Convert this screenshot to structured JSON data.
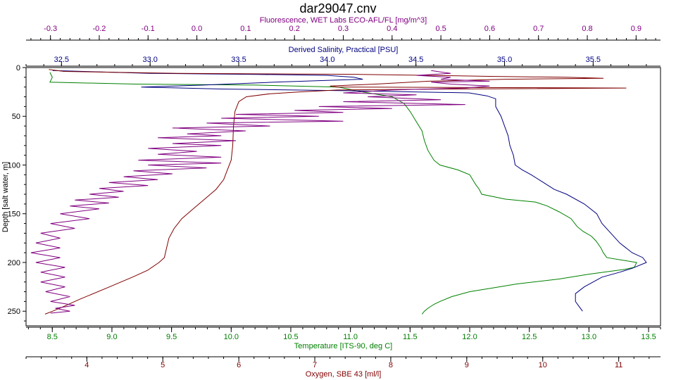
{
  "chart_data": {
    "type": "line",
    "title": "dar29047.cnv",
    "plot": {
      "depth_range": [
        0,
        265
      ]
    },
    "axes": [
      {
        "key": "fluorescence",
        "position": "top-outer",
        "label": "Fluorescence, WET Labs ECO-AFL/FL [mg/m^3]",
        "color": "#800080",
        "range": [
          -0.35,
          0.95
        ],
        "major_step": 0.1,
        "minor_step": 0.02,
        "tick_labels": [
          "-0.3",
          "-0.2",
          "-0.1",
          "0.0",
          "0.1",
          "0.2",
          "0.3",
          "0.4",
          "0.5",
          "0.6",
          "0.7",
          "0.8",
          "0.9"
        ]
      },
      {
        "key": "salinity",
        "position": "top-inner",
        "label": "Derived Salinity, Practical [PSU]",
        "color": "#000080",
        "range": [
          32.3,
          35.88
        ],
        "major_step": 0.5,
        "minor_step": 0.1,
        "tick_labels": [
          "32.5",
          "33.0",
          "33.5",
          "34.0",
          "34.5",
          "35.0",
          "35.5"
        ]
      },
      {
        "key": "temperature",
        "position": "bottom-inner",
        "label": "Temperature [ITS-90, deg C]",
        "color": "#008000",
        "range": [
          8.28,
          13.6
        ],
        "major_step": 0.5,
        "minor_step": 0.1,
        "tick_labels": [
          "8.5",
          "9.0",
          "9.5",
          "10.0",
          "10.5",
          "11.0",
          "11.5",
          "12.0",
          "12.5",
          "13.0",
          "13.5"
        ]
      },
      {
        "key": "oxygen",
        "position": "bottom-outer",
        "label": "Oxygen, SBE 43 [ml/l]",
        "color": "#800000",
        "range": [
          3.2,
          11.55
        ],
        "major_step": 1,
        "minor_step": 0.2,
        "tick_labels": [
          "4",
          "5",
          "6",
          "7",
          "8",
          "9",
          "10",
          "11"
        ]
      }
    ],
    "y_axis": {
      "label": "Depth [salt water, m]",
      "range": [
        0,
        265
      ],
      "ticks": [
        0,
        50,
        100,
        150,
        200,
        250
      ],
      "tick_labels": [
        "0",
        "50",
        "100",
        "150",
        "200",
        "250"
      ],
      "inverted": true
    },
    "series": [
      {
        "axis": "temperature",
        "color": "#008000",
        "points": [
          [
            8.48,
            5
          ],
          [
            8.5,
            10
          ],
          [
            8.48,
            15
          ],
          [
            9.2,
            17
          ],
          [
            10.2,
            18
          ],
          [
            10.9,
            20
          ],
          [
            11.1,
            25
          ],
          [
            11.35,
            30
          ],
          [
            11.45,
            37
          ],
          [
            11.5,
            45
          ],
          [
            11.55,
            55
          ],
          [
            11.6,
            65
          ],
          [
            11.62,
            75
          ],
          [
            11.65,
            85
          ],
          [
            11.7,
            95
          ],
          [
            11.75,
            100
          ],
          [
            11.9,
            105
          ],
          [
            12.0,
            110
          ],
          [
            12.05,
            120
          ],
          [
            12.08,
            125
          ],
          [
            12.1,
            130
          ],
          [
            12.3,
            135
          ],
          [
            12.55,
            138
          ],
          [
            12.65,
            142
          ],
          [
            12.75,
            148
          ],
          [
            12.85,
            155
          ],
          [
            12.9,
            163
          ],
          [
            12.95,
            168
          ],
          [
            13.02,
            173
          ],
          [
            13.06,
            178
          ],
          [
            13.1,
            185
          ],
          [
            13.12,
            190
          ],
          [
            13.15,
            195
          ],
          [
            13.3,
            198
          ],
          [
            13.4,
            200
          ],
          [
            13.38,
            205
          ],
          [
            13.3,
            207
          ],
          [
            13.0,
            212
          ],
          [
            12.75,
            217
          ],
          [
            12.4,
            222
          ],
          [
            12.2,
            226
          ],
          [
            12.0,
            230
          ],
          [
            11.85,
            235
          ],
          [
            11.75,
            240
          ],
          [
            11.7,
            243
          ],
          [
            11.65,
            247
          ],
          [
            11.62,
            250
          ],
          [
            11.6,
            253
          ]
        ]
      },
      {
        "axis": "salinity",
        "color": "#000080",
        "points": [
          [
            32.45,
            3
          ],
          [
            33.0,
            6
          ],
          [
            33.6,
            7
          ],
          [
            34.0,
            8
          ],
          [
            34.15,
            10
          ],
          [
            34.2,
            12
          ],
          [
            33.7,
            15
          ],
          [
            33.3,
            18
          ],
          [
            32.95,
            20
          ],
          [
            33.4,
            22
          ],
          [
            34.2,
            24
          ],
          [
            34.8,
            26
          ],
          [
            34.9,
            29
          ],
          [
            34.95,
            32
          ],
          [
            34.95,
            40
          ],
          [
            34.98,
            50
          ],
          [
            35.0,
            60
          ],
          [
            35.02,
            70
          ],
          [
            35.03,
            80
          ],
          [
            35.05,
            90
          ],
          [
            35.06,
            100
          ],
          [
            35.1,
            105
          ],
          [
            35.15,
            110
          ],
          [
            35.22,
            118
          ],
          [
            35.28,
            125
          ],
          [
            35.35,
            130
          ],
          [
            35.45,
            140
          ],
          [
            35.52,
            150
          ],
          [
            35.55,
            160
          ],
          [
            35.6,
            170
          ],
          [
            35.65,
            180
          ],
          [
            35.72,
            190
          ],
          [
            35.78,
            195
          ],
          [
            35.8,
            200
          ],
          [
            35.72,
            206
          ],
          [
            35.65,
            210
          ],
          [
            35.55,
            215
          ],
          [
            35.5,
            220
          ],
          [
            35.45,
            225
          ],
          [
            35.4,
            232
          ],
          [
            35.4,
            240
          ],
          [
            35.42,
            245
          ],
          [
            35.44,
            250
          ]
        ]
      },
      {
        "axis": "oxygen",
        "color": "#800000",
        "points": [
          [
            3.5,
            2
          ],
          [
            3.7,
            4
          ],
          [
            5.2,
            6
          ],
          [
            7.6,
            7
          ],
          [
            8.5,
            8
          ],
          [
            9.3,
            9
          ],
          [
            10.3,
            10
          ],
          [
            10.8,
            11
          ],
          [
            9.5,
            12
          ],
          [
            8.5,
            14
          ],
          [
            7.8,
            17
          ],
          [
            7.2,
            19
          ],
          [
            7.3,
            20
          ],
          [
            11.1,
            21
          ],
          [
            8.8,
            22
          ],
          [
            7.3,
            23
          ],
          [
            6.8,
            25
          ],
          [
            6.4,
            27
          ],
          [
            6.1,
            30
          ],
          [
            6.0,
            35
          ],
          [
            5.95,
            45
          ],
          [
            5.93,
            60
          ],
          [
            5.92,
            80
          ],
          [
            5.9,
            95
          ],
          [
            5.85,
            105
          ],
          [
            5.8,
            115
          ],
          [
            5.7,
            125
          ],
          [
            5.55,
            135
          ],
          [
            5.4,
            145
          ],
          [
            5.25,
            155
          ],
          [
            5.15,
            165
          ],
          [
            5.08,
            175
          ],
          [
            5.05,
            185
          ],
          [
            5.02,
            195
          ],
          [
            4.95,
            200
          ],
          [
            4.8,
            208
          ],
          [
            4.6,
            215
          ],
          [
            4.3,
            225
          ],
          [
            3.9,
            238
          ],
          [
            3.7,
            245
          ],
          [
            3.55,
            250
          ],
          [
            3.45,
            253
          ]
        ]
      },
      {
        "axis": "fluorescence",
        "color": "#800080",
        "points": [
          [
            0.48,
            3
          ],
          [
            0.52,
            6
          ],
          [
            0.45,
            8
          ],
          [
            0.52,
            10
          ],
          [
            0.5,
            12
          ],
          [
            0.6,
            14
          ],
          [
            0.48,
            15
          ],
          [
            0.52,
            17
          ],
          [
            0.6,
            19
          ],
          [
            0.55,
            21
          ],
          [
            0.4,
            23
          ],
          [
            0.3,
            26
          ],
          [
            0.45,
            28
          ],
          [
            0.35,
            30
          ],
          [
            0.5,
            33
          ],
          [
            0.3,
            35
          ],
          [
            0.55,
            38
          ],
          [
            0.25,
            40
          ],
          [
            0.4,
            42
          ],
          [
            0.2,
            44
          ],
          [
            0.3,
            46
          ],
          [
            0.08,
            48
          ],
          [
            0.25,
            50
          ],
          [
            0.05,
            52
          ],
          [
            0.3,
            55
          ],
          [
            0.02,
            57
          ],
          [
            0.15,
            60
          ],
          [
            -0.05,
            62
          ],
          [
            0.1,
            65
          ],
          [
            -0.02,
            68
          ],
          [
            0.05,
            70
          ],
          [
            -0.08,
            72
          ],
          [
            0.08,
            75
          ],
          [
            -0.05,
            78
          ],
          [
            0.05,
            80
          ],
          [
            -0.1,
            83
          ],
          [
            0.0,
            86
          ],
          [
            -0.08,
            89
          ],
          [
            0.05,
            92
          ],
          [
            -0.12,
            95
          ],
          [
            0.05,
            98
          ],
          [
            -0.1,
            100
          ],
          [
            0.02,
            103
          ],
          [
            -0.13,
            106
          ],
          [
            -0.05,
            109
          ],
          [
            -0.15,
            112
          ],
          [
            -0.08,
            115
          ],
          [
            -0.18,
            118
          ],
          [
            -0.1,
            121
          ],
          [
            -0.2,
            124
          ],
          [
            -0.15,
            127
          ],
          [
            -0.22,
            130
          ],
          [
            -0.16,
            133
          ],
          [
            -0.25,
            136
          ],
          [
            -0.18,
            139
          ],
          [
            -0.26,
            142
          ],
          [
            -0.2,
            145
          ],
          [
            -0.28,
            150
          ],
          [
            -0.22,
            155
          ],
          [
            -0.3,
            160
          ],
          [
            -0.25,
            165
          ],
          [
            -0.32,
            170
          ],
          [
            -0.28,
            175
          ],
          [
            -0.33,
            180
          ],
          [
            -0.28,
            185
          ],
          [
            -0.34,
            190
          ],
          [
            -0.28,
            195
          ],
          [
            -0.33,
            200
          ],
          [
            -0.27,
            205
          ],
          [
            -0.32,
            210
          ],
          [
            -0.27,
            215
          ],
          [
            -0.32,
            220
          ],
          [
            -0.27,
            225
          ],
          [
            -0.31,
            230
          ],
          [
            -0.26,
            235
          ],
          [
            -0.3,
            240
          ],
          [
            -0.25,
            244
          ],
          [
            -0.29,
            247
          ],
          [
            -0.26,
            250
          ],
          [
            -0.3,
            252
          ]
        ]
      }
    ]
  }
}
